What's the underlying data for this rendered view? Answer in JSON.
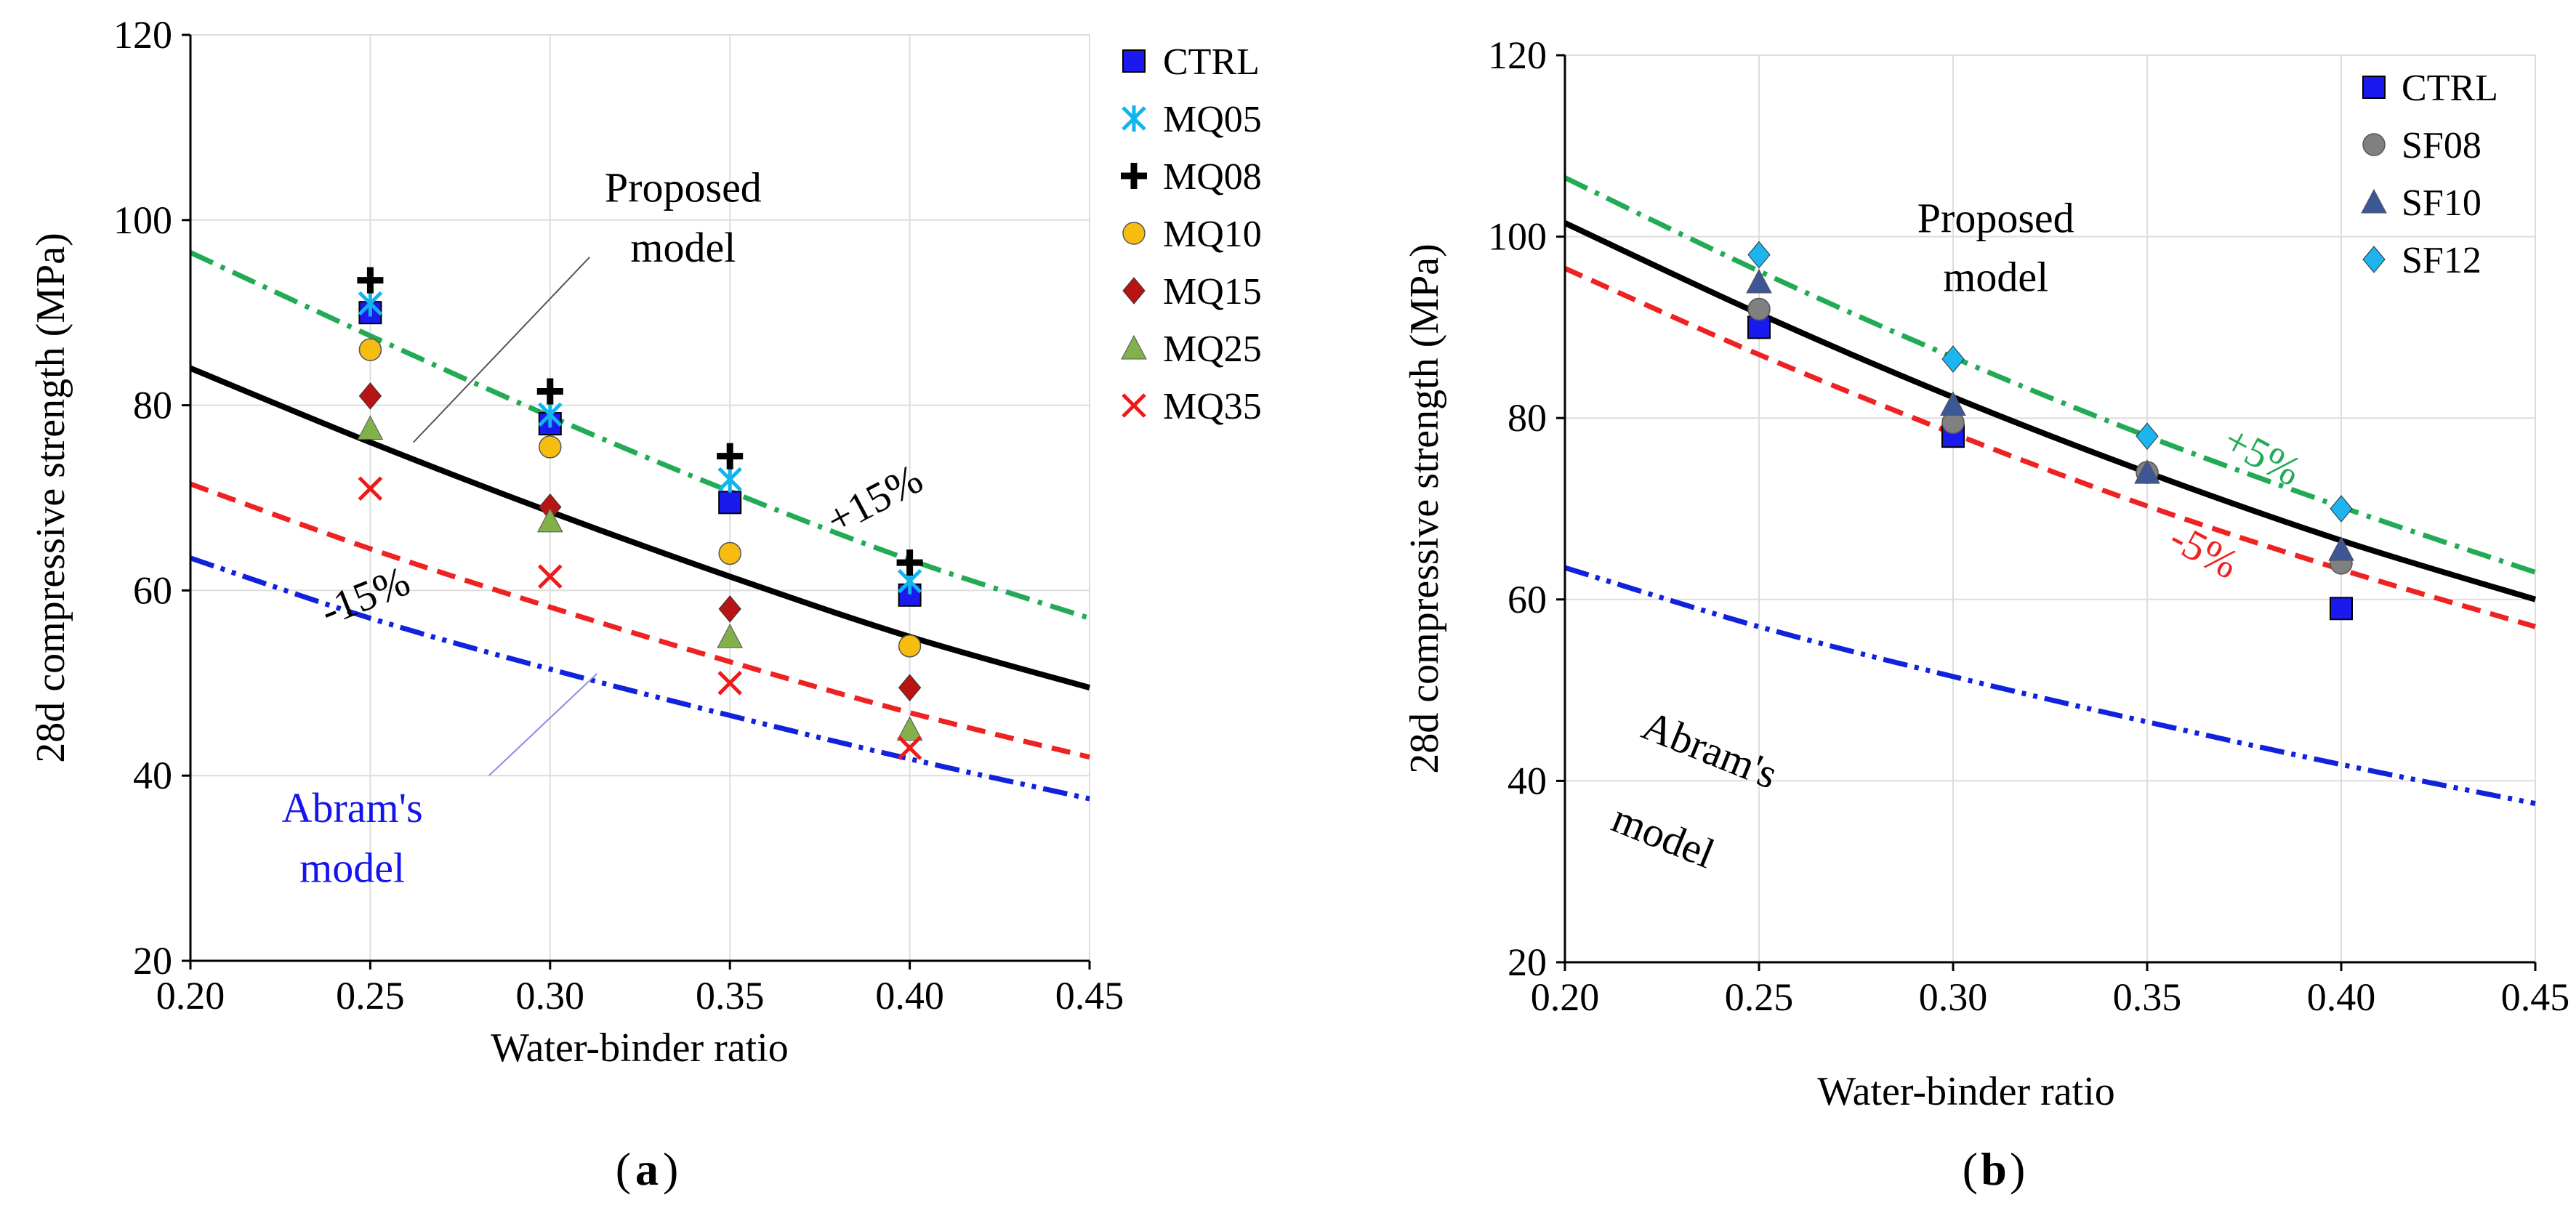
{
  "chart_data": [
    {
      "id": "a",
      "type": "scatter",
      "caption": "a",
      "xlabel": "Water-binder ratio",
      "ylabel": "28d compressive strength (MPa)",
      "xlim": [
        0.2,
        0.45
      ],
      "ylim": [
        20,
        120
      ],
      "xticks": [
        0.2,
        0.25,
        0.3,
        0.35,
        0.4,
        0.45
      ],
      "xtick_labels": [
        "0.20",
        "0.25",
        "0.30",
        "0.35",
        "0.40",
        "0.45"
      ],
      "yticks": [
        20,
        40,
        60,
        80,
        100,
        120
      ],
      "ytick_labels": [
        "20",
        "40",
        "60",
        "80",
        "100",
        "120"
      ],
      "grid": true,
      "legend_position": "outside-right",
      "lines": [
        {
          "name": "Proposed model",
          "style": "solid",
          "color": "#000000",
          "x": [
            0.2,
            0.25,
            0.3,
            0.35,
            0.4,
            0.45
          ],
          "y": [
            84,
            76,
            68.5,
            61.5,
            55,
            49.5
          ]
        },
        {
          "name": "+15%",
          "style": "dashdot",
          "color": "#22aa55",
          "x": [
            0.2,
            0.25,
            0.3,
            0.35,
            0.4,
            0.45
          ],
          "y": [
            96.5,
            87.5,
            78.8,
            70.7,
            63.3,
            57
          ]
        },
        {
          "name": "-15%",
          "style": "dashed",
          "color": "#ee2222",
          "x": [
            0.2,
            0.25,
            0.3,
            0.35,
            0.4,
            0.45
          ],
          "y": [
            71.5,
            64.5,
            58.2,
            52.3,
            46.8,
            42
          ]
        },
        {
          "name": "Abram's model",
          "style": "dashdotdot",
          "color": "#1122dd",
          "x": [
            0.2,
            0.25,
            0.3,
            0.35,
            0.4,
            0.45
          ],
          "y": [
            63.5,
            57,
            51.5,
            46.5,
            41.8,
            37.5
          ]
        }
      ],
      "series": [
        {
          "name": "CTRL",
          "marker": "square",
          "color": "#1a1aee",
          "x": [
            0.25,
            0.3,
            0.35,
            0.4
          ],
          "y": [
            90,
            78,
            69.5,
            59.5
          ]
        },
        {
          "name": "MQ05",
          "marker": "asterisk",
          "color": "#10b4ee",
          "x": [
            0.25,
            0.3,
            0.35,
            0.4
          ],
          "y": [
            91,
            79,
            72,
            61
          ]
        },
        {
          "name": "MQ08",
          "marker": "plus",
          "color": "#000000",
          "x": [
            0.25,
            0.3,
            0.35,
            0.4
          ],
          "y": [
            93.5,
            81.5,
            74.5,
            63
          ]
        },
        {
          "name": "MQ10",
          "marker": "circle",
          "color": "#f6bd10",
          "x": [
            0.25,
            0.3,
            0.35,
            0.4
          ],
          "y": [
            86,
            75.5,
            64,
            54
          ]
        },
        {
          "name": "MQ15",
          "marker": "diamond",
          "color": "#b81414",
          "x": [
            0.25,
            0.3,
            0.35,
            0.4
          ],
          "y": [
            81,
            69,
            58,
            49.5
          ]
        },
        {
          "name": "MQ25",
          "marker": "triangle",
          "color": "#82b04a",
          "x": [
            0.25,
            0.3,
            0.35,
            0.4
          ],
          "y": [
            77.5,
            67.5,
            55,
            45
          ]
        },
        {
          "name": "MQ35",
          "marker": "x",
          "color": "#ee1a1a",
          "x": [
            0.25,
            0.3,
            0.35,
            0.4
          ],
          "y": [
            71,
            61.5,
            50,
            43
          ]
        }
      ],
      "annotations": [
        {
          "text": "Proposed",
          "color": "#000000",
          "x": 0.337,
          "y": 102
        },
        {
          "text": "model",
          "color": "#000000",
          "x": 0.337,
          "y": 95.5
        },
        {
          "text": "+15%",
          "color": "#000000",
          "x": 0.392,
          "y": 68.5,
          "rotate": -28
        },
        {
          "text": "-15%",
          "color": "#000000",
          "x": 0.25,
          "y": 58,
          "rotate": -22
        },
        {
          "text": "Abram's",
          "color": "#1414ee",
          "x": 0.245,
          "y": 35
        },
        {
          "text": "model",
          "color": "#1414ee",
          "x": 0.245,
          "y": 28.5
        }
      ],
      "leaders": [
        {
          "color": "#555555",
          "x1": 0.262,
          "y1": 76,
          "x2": 0.311,
          "y2": 96
        },
        {
          "color": "#8888ee",
          "x1": 0.283,
          "y1": 40,
          "x2": 0.313,
          "y2": 51
        }
      ]
    },
    {
      "id": "b",
      "type": "scatter",
      "caption": "b",
      "xlabel": "Water-binder ratio",
      "ylabel": "28d compressive strength (MPa)",
      "xlim": [
        0.2,
        0.45
      ],
      "ylim": [
        20,
        120
      ],
      "xticks": [
        0.2,
        0.25,
        0.3,
        0.35,
        0.4,
        0.45
      ],
      "xtick_labels": [
        "0.20",
        "0.25",
        "0.30",
        "0.35",
        "0.40",
        "0.45"
      ],
      "yticks": [
        20,
        40,
        60,
        80,
        100,
        120
      ],
      "ytick_labels": [
        "20",
        "40",
        "60",
        "80",
        "100",
        "120"
      ],
      "grid": true,
      "legend_position": "top-right (inside)",
      "lines": [
        {
          "name": "Proposed model",
          "style": "solid",
          "color": "#000000",
          "x": [
            0.2,
            0.25,
            0.3,
            0.35,
            0.4,
            0.45
          ],
          "y": [
            101.5,
            91.5,
            82.3,
            74,
            66.5,
            60
          ]
        },
        {
          "name": "+5%",
          "style": "dashdot",
          "color": "#22aa55",
          "x": [
            0.2,
            0.25,
            0.3,
            0.35,
            0.4,
            0.45
          ],
          "y": [
            106.5,
            96.2,
            86.7,
            78,
            70.2,
            63
          ]
        },
        {
          "name": "-5%",
          "style": "dashed",
          "color": "#ee2222",
          "x": [
            0.2,
            0.25,
            0.3,
            0.35,
            0.4,
            0.45
          ],
          "y": [
            96.5,
            87,
            78.3,
            70.3,
            63.3,
            57
          ]
        },
        {
          "name": "Abram's model",
          "style": "dashdotdot",
          "color": "#1122dd",
          "x": [
            0.2,
            0.25,
            0.3,
            0.35,
            0.4,
            0.45
          ],
          "y": [
            63.5,
            57,
            51.5,
            46.5,
            41.8,
            37.5
          ]
        }
      ],
      "series": [
        {
          "name": "CTRL",
          "marker": "square",
          "color": "#1a1aee",
          "x": [
            0.25,
            0.3,
            0.4
          ],
          "y": [
            90,
            78,
            59
          ]
        },
        {
          "name": "SF08",
          "marker": "circle",
          "color": "#808080",
          "x": [
            0.25,
            0.3,
            0.35,
            0.4
          ],
          "y": [
            92,
            79.5,
            74,
            64
          ]
        },
        {
          "name": "SF10",
          "marker": "triangle",
          "color": "#3c5696",
          "x": [
            0.25,
            0.3,
            0.35,
            0.4
          ],
          "y": [
            95,
            81.5,
            74,
            65.5
          ]
        },
        {
          "name": "SF12",
          "marker": "diamond",
          "color": "#1eb4ee",
          "x": [
            0.25,
            0.3,
            0.35,
            0.4
          ],
          "y": [
            98,
            86.5,
            78,
            70
          ]
        }
      ],
      "annotations": [
        {
          "text": "Proposed",
          "color": "#000000",
          "x": 0.311,
          "y": 100.5
        },
        {
          "text": "model",
          "color": "#000000",
          "x": 0.311,
          "y": 94
        },
        {
          "text": "+5%",
          "color": "#22aa55",
          "x": 0.378,
          "y": 74.5,
          "rotate": 28
        },
        {
          "text": "-5%",
          "color": "#ee2222",
          "x": 0.363,
          "y": 64,
          "rotate": 28
        },
        {
          "text": "Abram's",
          "color": "#000000",
          "x": 0.236,
          "y": 42,
          "rotate": 22
        },
        {
          "text": "model",
          "color": "#000000",
          "x": 0.224,
          "y": 32.5,
          "rotate": 22
        }
      ],
      "leaders": []
    }
  ]
}
